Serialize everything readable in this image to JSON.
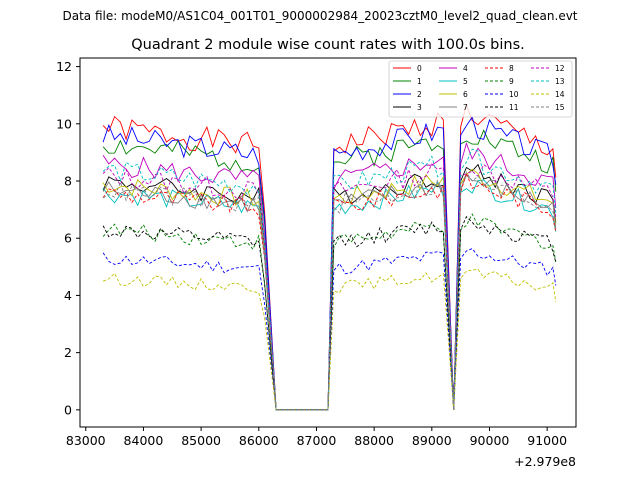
{
  "chart_data": {
    "type": "line",
    "suptitle": "Data file: modeM0/AS1C04_001T01_9000002984_20023cztM0_level2_quad_clean.evt",
    "title": "Quadrant 2 module wise count rates with 100.0s bins.",
    "xlabel": "",
    "ylabel": "",
    "offset_label": "+2.979e8",
    "xlim": [
      82900,
      91500
    ],
    "ylim": [
      -0.6,
      12.3
    ],
    "x_ticks": [
      83000,
      84000,
      85000,
      86000,
      87000,
      88000,
      89000,
      90000,
      91000
    ],
    "y_ticks": [
      0,
      2,
      4,
      6,
      8,
      10,
      12
    ],
    "legend_loc": "upper right",
    "series_shape": {
      "segments": [
        {
          "x0": 83300,
          "x1": 86000,
          "w0": 1.0,
          "w1": 0.93
        },
        {
          "x0": 87300,
          "x1": 89200,
          "w0": 0.93,
          "w1": 1.02
        },
        {
          "x0": 89600,
          "x1": 91100,
          "w0": 1.05,
          "w1": 0.92
        }
      ],
      "gap_points": [
        [
          86100,
          "frac",
          0.7
        ],
        [
          86300,
          "abs",
          0
        ],
        [
          87200,
          "abs",
          0
        ],
        [
          89380,
          "abs",
          0
        ],
        [
          89500,
          "frac",
          1.0
        ],
        [
          91150,
          "frac",
          0.82
        ]
      ]
    },
    "series": [
      {
        "name": "0",
        "color": "#ff0000",
        "dash": "solid",
        "level": 9.9
      },
      {
        "name": "1",
        "color": "#008000",
        "dash": "solid",
        "level": 9.3
      },
      {
        "name": "2",
        "color": "#0000ff",
        "dash": "solid",
        "level": 9.6
      },
      {
        "name": "3",
        "color": "#000000",
        "dash": "solid",
        "level": 8.0
      },
      {
        "name": "4",
        "color": "#bf00bf",
        "dash": "solid",
        "level": 8.6
      },
      {
        "name": "5",
        "color": "#00bfbf",
        "dash": "solid",
        "level": 7.6
      },
      {
        "name": "6",
        "color": "#bfbf00",
        "dash": "solid",
        "level": 7.9
      },
      {
        "name": "7",
        "color": "#808080",
        "dash": "solid",
        "level": 7.7
      },
      {
        "name": "8",
        "color": "#ff0000",
        "dash": "dashed",
        "level": 7.6
      },
      {
        "name": "9",
        "color": "#008000",
        "dash": "dashed",
        "level": 6.3
      },
      {
        "name": "10",
        "color": "#0000ff",
        "dash": "dashed",
        "level": 5.3
      },
      {
        "name": "11",
        "color": "#000000",
        "dash": "dashed",
        "level": 6.3
      },
      {
        "name": "12",
        "color": "#bf00bf",
        "dash": "dashed",
        "level": 8.2
      },
      {
        "name": "13",
        "color": "#00bfbf",
        "dash": "dashed",
        "level": 8.4
      },
      {
        "name": "14",
        "color": "#bfbf00",
        "dash": "dashed",
        "level": 4.6
      },
      {
        "name": "15",
        "color": "#808080",
        "dash": "dashed",
        "level": 7.7
      }
    ]
  }
}
